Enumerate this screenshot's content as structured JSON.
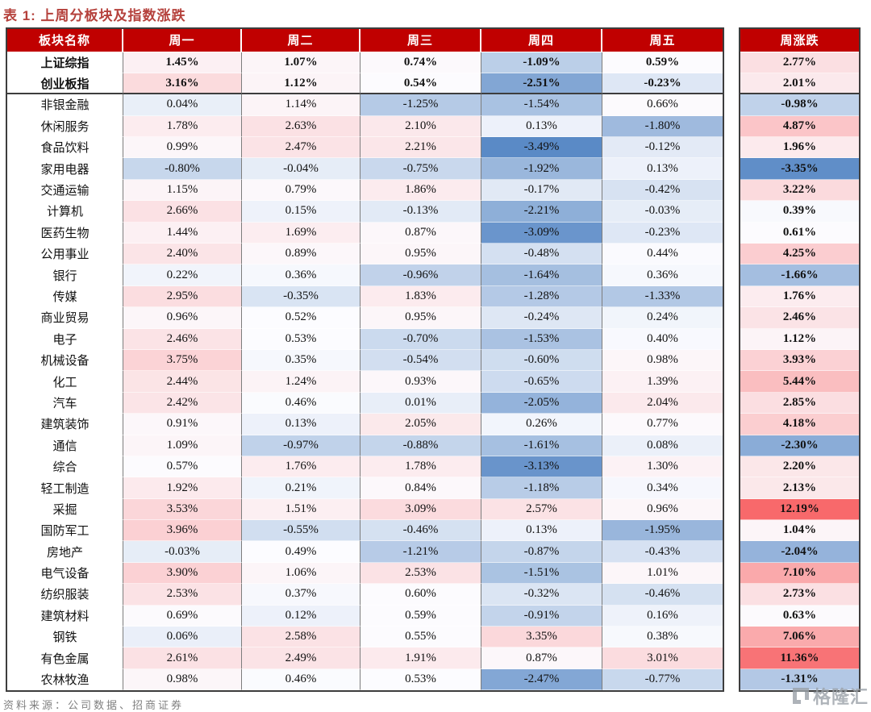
{
  "title": "表 1:  上周分板块及指数涨跌",
  "source": "资料来源：公司数据、招商证券",
  "watermark": {
    "text": "格隆汇"
  },
  "colors": {
    "title": "#B5413C",
    "header_bg": "#C00000",
    "header_text": "#FFFFFF",
    "table_border": "#3D3D3D",
    "column_border": "#7D7D7D",
    "source_text": "#808080",
    "scale_min_color": "#5A8AC6",
    "scale_mid_color": "#FCFCFF",
    "scale_max_color": "#F8696B"
  },
  "chart_data": {
    "type": "heatmap",
    "title": "表 1:  上周分板块及指数涨跌",
    "columns": [
      "板块名称",
      "周一",
      "周二",
      "周三",
      "周四",
      "周五",
      "周涨跌"
    ],
    "value_format": "percent_two_decimals",
    "color_scale": {
      "min": -3.49,
      "mid": 0.5,
      "max": 12.19,
      "min_color": "#5A8AC6",
      "mid_color": "#FCFCFF",
      "max_color": "#F8696B"
    },
    "index_rows": [
      {
        "name": "上证综指",
        "daily": [
          1.45,
          1.07,
          0.74,
          -1.09,
          0.59
        ],
        "week": 2.77
      },
      {
        "name": "创业板指",
        "daily": [
          3.16,
          1.12,
          0.54,
          -2.51,
          -0.23
        ],
        "week": 2.01
      }
    ],
    "sector_rows": [
      {
        "name": "非银金融",
        "daily": [
          0.04,
          1.14,
          -1.25,
          -1.54,
          0.66
        ],
        "week": -0.98
      },
      {
        "name": "休闲服务",
        "daily": [
          1.78,
          2.63,
          2.1,
          0.13,
          -1.8
        ],
        "week": 4.87
      },
      {
        "name": "食品饮料",
        "daily": [
          0.99,
          2.47,
          2.21,
          -3.49,
          -0.12
        ],
        "week": 1.96
      },
      {
        "name": "家用电器",
        "daily": [
          -0.8,
          -0.04,
          -0.75,
          -1.92,
          0.13
        ],
        "week": -3.35
      },
      {
        "name": "交通运输",
        "daily": [
          1.15,
          0.79,
          1.86,
          -0.17,
          -0.42
        ],
        "week": 3.22
      },
      {
        "name": "计算机",
        "daily": [
          2.66,
          0.15,
          -0.13,
          -2.21,
          -0.03
        ],
        "week": 0.39
      },
      {
        "name": "医药生物",
        "daily": [
          1.44,
          1.69,
          0.87,
          -3.09,
          -0.23
        ],
        "week": 0.61
      },
      {
        "name": "公用事业",
        "daily": [
          2.4,
          0.89,
          0.95,
          -0.48,
          0.44
        ],
        "week": 4.25
      },
      {
        "name": "银行",
        "daily": [
          0.22,
          0.36,
          -0.96,
          -1.64,
          0.36
        ],
        "week": -1.66
      },
      {
        "name": "传媒",
        "daily": [
          2.95,
          -0.35,
          1.83,
          -1.28,
          -1.33
        ],
        "week": 1.76
      },
      {
        "name": "商业贸易",
        "daily": [
          0.96,
          0.52,
          0.95,
          -0.24,
          0.24
        ],
        "week": 2.46
      },
      {
        "name": "电子",
        "daily": [
          2.46,
          0.53,
          -0.7,
          -1.53,
          0.4
        ],
        "week": 1.12
      },
      {
        "name": "机械设备",
        "daily": [
          3.75,
          0.35,
          -0.54,
          -0.6,
          0.98
        ],
        "week": 3.93
      },
      {
        "name": "化工",
        "daily": [
          2.44,
          1.24,
          0.93,
          -0.65,
          1.39
        ],
        "week": 5.44
      },
      {
        "name": "汽车",
        "daily": [
          2.42,
          0.46,
          0.01,
          -2.05,
          2.04
        ],
        "week": 2.85
      },
      {
        "name": "建筑装饰",
        "daily": [
          0.91,
          0.13,
          2.05,
          0.26,
          0.77
        ],
        "week": 4.18
      },
      {
        "name": "通信",
        "daily": [
          1.09,
          -0.97,
          -0.88,
          -1.61,
          0.08
        ],
        "week": -2.3
      },
      {
        "name": "综合",
        "daily": [
          0.57,
          1.76,
          1.78,
          -3.13,
          1.3
        ],
        "week": 2.2
      },
      {
        "name": "轻工制造",
        "daily": [
          1.92,
          0.21,
          0.84,
          -1.18,
          0.34
        ],
        "week": 2.13
      },
      {
        "name": "采掘",
        "daily": [
          3.53,
          1.51,
          3.09,
          2.57,
          0.96
        ],
        "week": 12.19
      },
      {
        "name": "国防军工",
        "daily": [
          3.96,
          -0.55,
          -0.46,
          0.13,
          -1.95
        ],
        "week": 1.04
      },
      {
        "name": "房地产",
        "daily": [
          -0.03,
          0.49,
          -1.21,
          -0.87,
          -0.43
        ],
        "week": -2.04
      },
      {
        "name": "电气设备",
        "daily": [
          3.9,
          1.06,
          2.53,
          -1.51,
          1.01
        ],
        "week": 7.1
      },
      {
        "name": "纺织服装",
        "daily": [
          2.53,
          0.37,
          0.6,
          -0.32,
          -0.46
        ],
        "week": 2.73
      },
      {
        "name": "建筑材料",
        "daily": [
          0.69,
          0.12,
          0.59,
          -0.91,
          0.16
        ],
        "week": 0.63
      },
      {
        "name": "钢铁",
        "daily": [
          0.06,
          2.58,
          0.55,
          3.35,
          0.38
        ],
        "week": 7.06
      },
      {
        "name": "有色金属",
        "daily": [
          2.61,
          2.49,
          1.91,
          0.87,
          3.01
        ],
        "week": 11.36
      },
      {
        "name": "农林牧渔",
        "daily": [
          0.98,
          0.46,
          0.53,
          -2.47,
          -0.77
        ],
        "week": -1.31
      }
    ]
  }
}
